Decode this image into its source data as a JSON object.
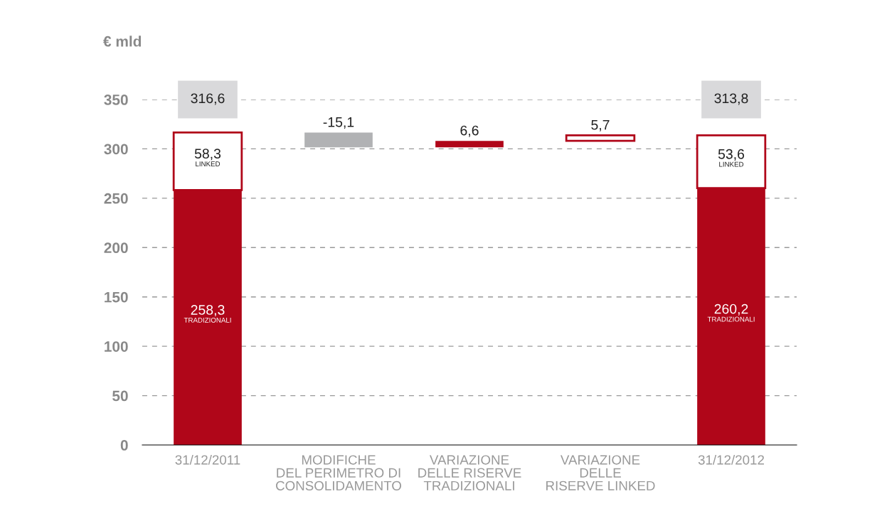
{
  "chart_data": {
    "type": "bar",
    "ylabel": "€ mld",
    "categories": [
      "31/12/2011",
      "MODIFICHE\nDEL PERIMETRO DI\nCONSOLIDAMENTO",
      "VARIAZIONE\nDELLE RISERVE\nTRADIZIONALI",
      "VARIAZIONE\nDELLE\nRISERVE LINKED",
      "31/12/2012"
    ],
    "series": [
      {
        "name": "TRADIZIONALI",
        "color": "#b00619",
        "values": [
          258.3,
          null,
          6.6,
          null,
          260.2
        ],
        "base": [
          0,
          null,
          301.5,
          null,
          0
        ],
        "value_labels": [
          "258,3",
          null,
          "6,6",
          null,
          "260,2"
        ]
      },
      {
        "name": "LINKED",
        "color": "#ffffff",
        "values": [
          58.3,
          null,
          null,
          5.7,
          53.6
        ],
        "base": [
          258.3,
          null,
          null,
          308.1,
          260.2
        ],
        "value_labels": [
          "58,3",
          null,
          null,
          "5,7",
          "53,6"
        ]
      },
      {
        "color": "#b1b2b4",
        "values": [
          null,
          -15.1,
          null,
          null,
          null
        ],
        "base": [
          null,
          316.6,
          null,
          null,
          null
        ],
        "value_labels": [
          null,
          "-15,1",
          null,
          null,
          null
        ]
      }
    ],
    "totals": [
      "316,6",
      null,
      null,
      null,
      "313,8"
    ],
    "ylim": [
      0,
      350
    ],
    "yticks": [
      0,
      50,
      100,
      150,
      200,
      250,
      300,
      350
    ],
    "grid": "y",
    "legend": false
  }
}
